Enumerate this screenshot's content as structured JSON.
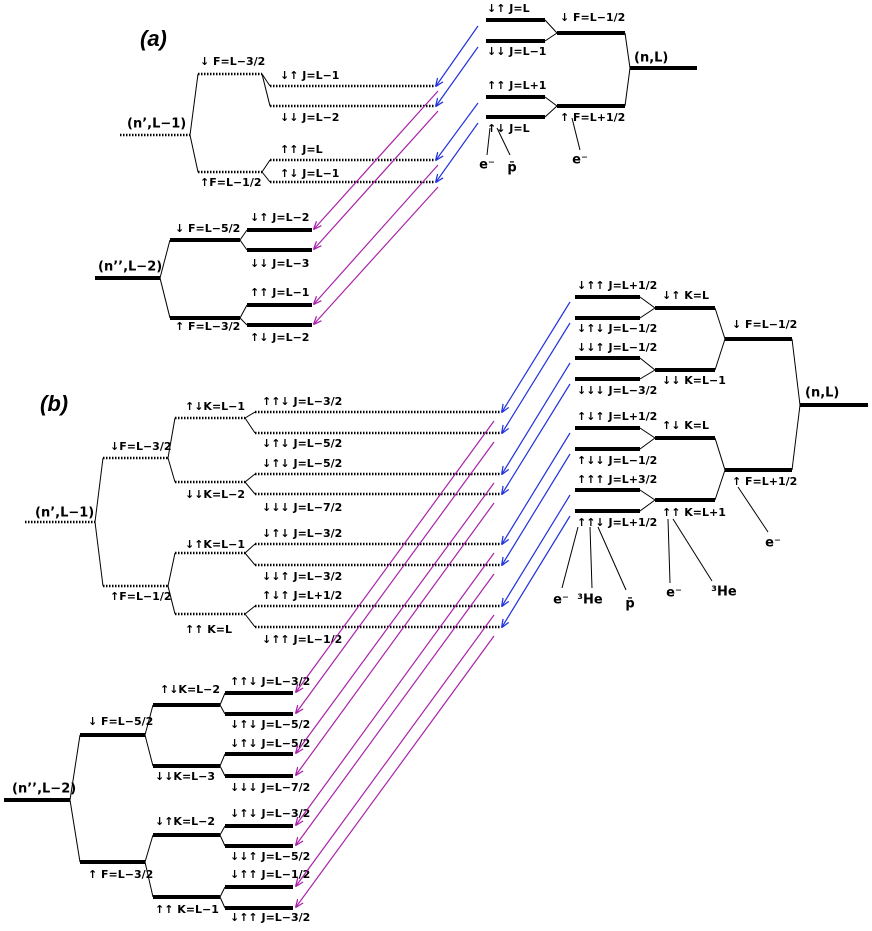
{
  "panel_a": {
    "label": "(a)",
    "upper": {
      "label": "(n,L)",
      "F": [
        "↓ F=L−1/2",
        "↑ F=L+1/2"
      ],
      "J": [
        "↓↑ J=L",
        "↓↓ J=L−1",
        "↑↑ J=L+1",
        "↑↓ J=L"
      ],
      "particles": [
        "e⁻",
        "p̄",
        "e⁻"
      ]
    },
    "middle": {
      "label": "(n’,L−1)",
      "F": [
        "↓ F=L−3/2",
        "↑F=L−1/2"
      ],
      "J": [
        "↓↑ J=L−1",
        "↓↓ J=L−2",
        "↑↑ J=L",
        "↑↓ J=L−1"
      ]
    },
    "lower": {
      "label": "(n’’,L−2)",
      "F": [
        "↓ F=L−5/2",
        "↑ F=L−3/2"
      ],
      "J": [
        "↓↑ J=L−2",
        "↓↓ J=L−3",
        "↑↑ J=L−1",
        "↑↓ J=L−2"
      ]
    }
  },
  "panel_b": {
    "label": "(b)",
    "upper": {
      "label": "(n,L)",
      "F": [
        "↓ F=L−1/2",
        "↑ F=L+1/2"
      ],
      "K": [
        "↓↑ K=L",
        "↓↓ K=L−1",
        "↑↓ K=L",
        "↑↑ K=L+1"
      ],
      "J": [
        "↓↑↑ J=L+1/2",
        "↓↑↓ J=L−1/2",
        "↓↓↑ J=L−1/2",
        "↓↓↓ J=L−3/2",
        "↑↓↑ J=L+1/2",
        "↑↓↓ J=L−1/2",
        "↑↑↑ J=L+3/2",
        "↑↑↓ J=L+1/2"
      ],
      "particles": [
        "e⁻",
        "³He",
        "p̄",
        "e⁻",
        "³He",
        "e⁻"
      ]
    },
    "middle": {
      "label": "(n’,L−1)",
      "F": [
        "↓F=L−3/2",
        "↑F=L−1/2"
      ],
      "K": [
        "↑↓K=L−1",
        "↓↓K=L−2",
        "↓↑K=L−1",
        "↑↑ K=L"
      ],
      "J": [
        "↑↑↓ J=L−3/2",
        "↓↑↓ J=L−5/2",
        "↓↑↓ J=L−5/2",
        "↓↓↓ J=L−7/2",
        "↓↑↓ J=L−3/2",
        "↓↓↑ J=L−3/2",
        "↑↓↑ J=L+1/2",
        "↓↑↑ J=L−1/2"
      ]
    },
    "lower": {
      "label": "(n’’,L−2)",
      "F": [
        "↓ F=L−5/2",
        "↑ F=L−3/2"
      ],
      "K": [
        "↑↓K=L−2",
        "↓↓K=L−3",
        "↓↑K=L−2",
        "↑↑ K=L−1"
      ],
      "J": [
        "↑↑↓ J=L−3/2",
        "↓↑↓ J=L−5/2",
        "↓↑↓ J=L−5/2",
        "↓↓↓ J=L−7/2",
        "↓↑↓ J=L−3/2",
        "↓↓↑ J=L−5/2",
        "↓↑↑ J=L−1/2",
        "↓↑↑ J=L−3/2"
      ]
    }
  }
}
